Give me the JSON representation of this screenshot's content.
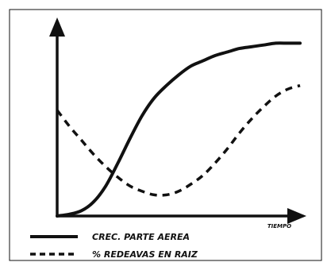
{
  "chart_data": {
    "type": "line",
    "title": "",
    "xlabel": "TIEMPO",
    "ylabel": "",
    "xlim": [
      0,
      100
    ],
    "ylim": [
      0,
      100
    ],
    "grid": false,
    "legend_position": "bottom-left",
    "series": [
      {
        "name": "CREC. PARTE AEREA",
        "style": "solid",
        "x": [
          0,
          5,
          10,
          15,
          20,
          25,
          30,
          35,
          40,
          45,
          50,
          55,
          60,
          65,
          70,
          75,
          80,
          85,
          90,
          95,
          100
        ],
        "y": [
          0,
          1,
          3,
          8,
          17,
          30,
          44,
          57,
          67,
          74,
          80,
          85,
          88,
          91,
          93,
          95,
          96,
          97,
          98,
          98,
          98
        ]
      },
      {
        "name": "% REDEAVAS EN RAIZ",
        "style": "dashed",
        "x": [
          0,
          5,
          10,
          15,
          20,
          25,
          30,
          35,
          40,
          45,
          50,
          55,
          60,
          65,
          70,
          75,
          80,
          85,
          90,
          95,
          100
        ],
        "y": [
          60,
          51,
          43,
          35,
          28,
          22,
          17,
          14,
          12,
          12,
          14,
          18,
          23,
          30,
          38,
          47,
          55,
          62,
          68,
          72,
          74
        ]
      }
    ]
  }
}
